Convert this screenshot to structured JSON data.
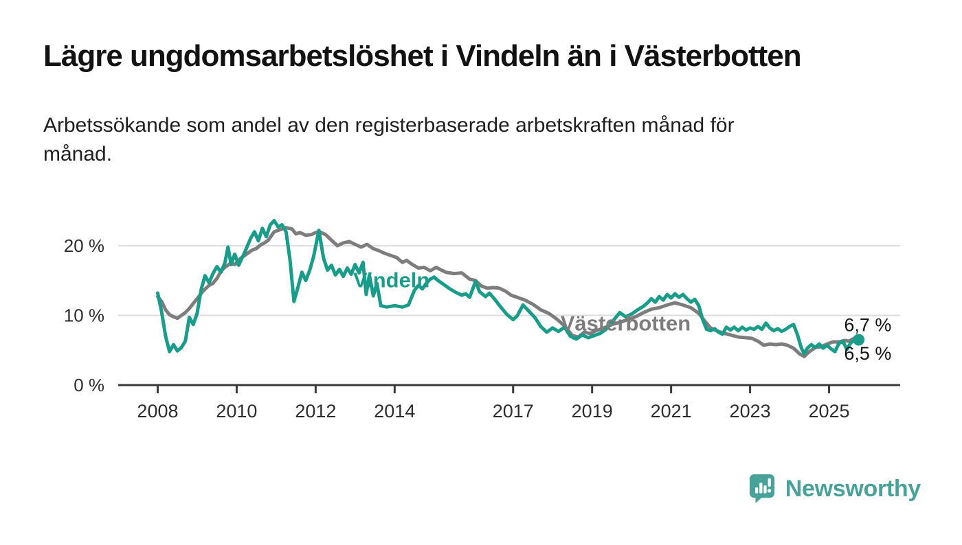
{
  "header": {
    "title": "Lägre ungdomsarbetslöshet i Vindeln än i Västerbotten",
    "subtitle": "Arbetssökande som andel av den registerbaserade arbetskraften månad för månad."
  },
  "footer": {
    "brand": "Newsworthy",
    "brand_color": "#48a29a",
    "logo_icon": "newsworthy-pin-barchart-icon"
  },
  "colors": {
    "background": "#ffffff",
    "grid": "#dcdcdc",
    "axis": "#3a3a3a",
    "tick_text": "#2d2d2d",
    "end_label_text": "#141414"
  },
  "chart_data": {
    "type": "line",
    "title": "Lägre ungdomsarbetslöshet i Vindeln än i Västerbotten",
    "subtitle": "Arbetssökande som andel av den registerbaserade arbetskraften månad för månad.",
    "unit": "%",
    "grid": "horizontal",
    "legend_position": "inline-labels",
    "x_axis": {
      "domain": [
        2007.0,
        2026.8
      ],
      "ticks": [
        2008,
        2010,
        2012,
        2014,
        2017,
        2019,
        2021,
        2023,
        2025
      ]
    },
    "y_axis": {
      "domain": [
        0,
        29.85
      ],
      "ticks": [
        {
          "value": 0,
          "label": "0 %"
        },
        {
          "value": 10,
          "label": "10 %"
        },
        {
          "value": 20,
          "label": "20 %"
        }
      ]
    },
    "series": [
      {
        "name": "Västerbotten",
        "color": "#7d7d7d",
        "end_dot": false,
        "end_label": "6,7 %",
        "end_label_pos": {
          "year": 2025.38,
          "value": 8.6
        },
        "inline_label_pos": {
          "year": 2018.2,
          "value": 8.9
        },
        "points": [
          [
            2008.0,
            12.7
          ],
          [
            2008.1,
            12.0
          ],
          [
            2008.2,
            10.8
          ],
          [
            2008.3,
            10.1
          ],
          [
            2008.4,
            9.8
          ],
          [
            2008.5,
            9.6
          ],
          [
            2008.6,
            10.0
          ],
          [
            2008.7,
            10.4
          ],
          [
            2008.8,
            11.0
          ],
          [
            2008.9,
            11.7
          ],
          [
            2009.0,
            12.4
          ],
          [
            2009.15,
            13.5
          ],
          [
            2009.3,
            14.3
          ],
          [
            2009.4,
            14.6
          ],
          [
            2009.5,
            15.3
          ],
          [
            2009.6,
            16.3
          ],
          [
            2009.7,
            16.9
          ],
          [
            2009.85,
            17.5
          ],
          [
            2009.95,
            17.3
          ],
          [
            2010.1,
            18.2
          ],
          [
            2010.25,
            18.8
          ],
          [
            2010.4,
            19.4
          ],
          [
            2010.5,
            19.6
          ],
          [
            2010.6,
            20.1
          ],
          [
            2010.7,
            20.4
          ],
          [
            2010.8,
            20.8
          ],
          [
            2010.95,
            22.0
          ],
          [
            2011.1,
            22.3
          ],
          [
            2011.25,
            22.6
          ],
          [
            2011.4,
            22.4
          ],
          [
            2011.5,
            21.7
          ],
          [
            2011.6,
            21.9
          ],
          [
            2011.75,
            21.5
          ],
          [
            2011.9,
            21.6
          ],
          [
            2012.0,
            21.9
          ],
          [
            2012.1,
            22.0
          ],
          [
            2012.25,
            21.6
          ],
          [
            2012.4,
            20.8
          ],
          [
            2012.55,
            20.0
          ],
          [
            2012.7,
            20.4
          ],
          [
            2012.85,
            20.6
          ],
          [
            2013.0,
            20.2
          ],
          [
            2013.15,
            19.8
          ],
          [
            2013.3,
            20.2
          ],
          [
            2013.45,
            19.6
          ],
          [
            2013.6,
            19.3
          ],
          [
            2013.75,
            18.9
          ],
          [
            2013.9,
            18.6
          ],
          [
            2014.05,
            18.3
          ],
          [
            2014.2,
            17.6
          ],
          [
            2014.3,
            17.9
          ],
          [
            2014.45,
            17.3
          ],
          [
            2014.6,
            16.8
          ],
          [
            2014.75,
            16.9
          ],
          [
            2014.9,
            16.4
          ],
          [
            2015.05,
            16.9
          ],
          [
            2015.15,
            16.6
          ],
          [
            2015.3,
            16.2
          ],
          [
            2015.5,
            16.0
          ],
          [
            2015.7,
            16.1
          ],
          [
            2015.9,
            15.2
          ],
          [
            2016.05,
            15.0
          ],
          [
            2016.2,
            14.2
          ],
          [
            2016.35,
            13.9
          ],
          [
            2016.5,
            14.0
          ],
          [
            2016.65,
            13.9
          ],
          [
            2016.8,
            13.5
          ],
          [
            2016.95,
            12.9
          ],
          [
            2017.1,
            12.6
          ],
          [
            2017.3,
            12.2
          ],
          [
            2017.5,
            11.6
          ],
          [
            2017.7,
            10.8
          ],
          [
            2017.9,
            10.3
          ],
          [
            2018.1,
            9.5
          ],
          [
            2018.3,
            8.5
          ],
          [
            2018.5,
            7.1
          ],
          [
            2018.65,
            6.9
          ],
          [
            2018.8,
            7.6
          ],
          [
            2018.95,
            7.4
          ],
          [
            2019.1,
            7.8
          ],
          [
            2019.3,
            8.2
          ],
          [
            2019.5,
            8.7
          ],
          [
            2019.7,
            9.0
          ],
          [
            2019.9,
            9.4
          ],
          [
            2020.1,
            9.8
          ],
          [
            2020.3,
            10.4
          ],
          [
            2020.5,
            10.9
          ],
          [
            2020.7,
            11.1
          ],
          [
            2020.9,
            11.5
          ],
          [
            2021.1,
            11.8
          ],
          [
            2021.3,
            11.5
          ],
          [
            2021.5,
            11.1
          ],
          [
            2021.7,
            10.3
          ],
          [
            2021.85,
            9.2
          ],
          [
            2022.0,
            8.2
          ],
          [
            2022.15,
            7.8
          ],
          [
            2022.3,
            7.5
          ],
          [
            2022.5,
            7.2
          ],
          [
            2022.7,
            6.9
          ],
          [
            2022.9,
            6.8
          ],
          [
            2023.05,
            6.7
          ],
          [
            2023.2,
            6.3
          ],
          [
            2023.35,
            5.7
          ],
          [
            2023.5,
            5.9
          ],
          [
            2023.65,
            5.8
          ],
          [
            2023.8,
            5.9
          ],
          [
            2023.95,
            5.7
          ],
          [
            2024.1,
            5.3
          ],
          [
            2024.25,
            4.5
          ],
          [
            2024.37,
            4.1
          ],
          [
            2024.5,
            4.8
          ],
          [
            2024.65,
            5.4
          ],
          [
            2024.8,
            5.5
          ],
          [
            2024.95,
            5.9
          ],
          [
            2025.1,
            6.2
          ],
          [
            2025.25,
            6.2
          ],
          [
            2025.4,
            6.4
          ],
          [
            2025.5,
            6.3
          ],
          [
            2025.6,
            6.6
          ],
          [
            2025.7,
            6.9
          ],
          [
            2025.75,
            6.7
          ]
        ]
      },
      {
        "name": "Vindeln",
        "color": "#1a9c8a",
        "end_dot": true,
        "end_label": "6,5 %",
        "end_label_pos": {
          "year": 2025.38,
          "value": 4.55
        },
        "inline_label_pos": {
          "year": 2012.95,
          "value": 15.1
        },
        "points": [
          [
            2008.0,
            13.2
          ],
          [
            2008.1,
            10.5
          ],
          [
            2008.2,
            7.0
          ],
          [
            2008.3,
            4.8
          ],
          [
            2008.4,
            5.8
          ],
          [
            2008.5,
            4.9
          ],
          [
            2008.6,
            5.4
          ],
          [
            2008.7,
            6.3
          ],
          [
            2008.8,
            9.7
          ],
          [
            2008.9,
            8.7
          ],
          [
            2009.0,
            10.3
          ],
          [
            2009.1,
            13.7
          ],
          [
            2009.2,
            15.7
          ],
          [
            2009.3,
            14.7
          ],
          [
            2009.4,
            16.0
          ],
          [
            2009.5,
            17.0
          ],
          [
            2009.6,
            16.2
          ],
          [
            2009.7,
            17.5
          ],
          [
            2009.78,
            19.8
          ],
          [
            2009.86,
            17.3
          ],
          [
            2009.95,
            18.8
          ],
          [
            2010.05,
            17.2
          ],
          [
            2010.2,
            19.0
          ],
          [
            2010.35,
            21.0
          ],
          [
            2010.45,
            22.0
          ],
          [
            2010.55,
            20.7
          ],
          [
            2010.65,
            22.5
          ],
          [
            2010.75,
            21.3
          ],
          [
            2010.85,
            23.0
          ],
          [
            2010.95,
            23.6
          ],
          [
            2011.05,
            22.7
          ],
          [
            2011.15,
            23.0
          ],
          [
            2011.25,
            22.0
          ],
          [
            2011.35,
            18.0
          ],
          [
            2011.45,
            12.0
          ],
          [
            2011.55,
            14.0
          ],
          [
            2011.65,
            16.2
          ],
          [
            2011.75,
            15.0
          ],
          [
            2011.85,
            16.5
          ],
          [
            2011.95,
            18.5
          ],
          [
            2012.08,
            22.2
          ],
          [
            2012.2,
            18.2
          ],
          [
            2012.3,
            16.5
          ],
          [
            2012.4,
            17.2
          ],
          [
            2012.5,
            15.8
          ],
          [
            2012.6,
            16.6
          ],
          [
            2012.7,
            15.6
          ],
          [
            2012.8,
            16.8
          ],
          [
            2012.9,
            15.9
          ],
          [
            2013.0,
            17.3
          ],
          [
            2013.1,
            16.1
          ],
          [
            2013.2,
            17.6
          ],
          [
            2013.28,
            13.0
          ],
          [
            2013.36,
            15.8
          ],
          [
            2013.46,
            12.8
          ],
          [
            2013.55,
            14.6
          ],
          [
            2013.65,
            11.4
          ],
          [
            2013.8,
            11.2
          ],
          [
            2014.0,
            11.4
          ],
          [
            2014.2,
            11.2
          ],
          [
            2014.35,
            11.5
          ],
          [
            2014.5,
            13.6
          ],
          [
            2014.6,
            14.3
          ],
          [
            2014.7,
            13.8
          ],
          [
            2014.8,
            14.6
          ],
          [
            2014.9,
            15.2
          ],
          [
            2015.0,
            15.5
          ],
          [
            2015.1,
            15.0
          ],
          [
            2015.25,
            14.4
          ],
          [
            2015.4,
            13.8
          ],
          [
            2015.55,
            13.3
          ],
          [
            2015.7,
            12.9
          ],
          [
            2015.8,
            13.1
          ],
          [
            2015.9,
            12.6
          ],
          [
            2016.05,
            14.9
          ],
          [
            2016.15,
            13.4
          ],
          [
            2016.3,
            12.7
          ],
          [
            2016.4,
            13.2
          ],
          [
            2016.55,
            12.2
          ],
          [
            2016.7,
            11.1
          ],
          [
            2016.85,
            10.1
          ],
          [
            2017.0,
            9.4
          ],
          [
            2017.1,
            9.9
          ],
          [
            2017.25,
            11.5
          ],
          [
            2017.4,
            10.6
          ],
          [
            2017.55,
            9.7
          ],
          [
            2017.7,
            8.4
          ],
          [
            2017.85,
            7.6
          ],
          [
            2018.0,
            8.2
          ],
          [
            2018.15,
            7.7
          ],
          [
            2018.3,
            8.3
          ],
          [
            2018.45,
            7.0
          ],
          [
            2018.6,
            6.6
          ],
          [
            2018.75,
            7.2
          ],
          [
            2018.9,
            6.8
          ],
          [
            2019.05,
            7.1
          ],
          [
            2019.2,
            7.4
          ],
          [
            2019.35,
            8.0
          ],
          [
            2019.5,
            9.0
          ],
          [
            2019.7,
            10.4
          ],
          [
            2019.85,
            9.8
          ],
          [
            2020.0,
            10.2
          ],
          [
            2020.15,
            10.8
          ],
          [
            2020.3,
            11.3
          ],
          [
            2020.42,
            11.9
          ],
          [
            2020.5,
            12.4
          ],
          [
            2020.6,
            11.9
          ],
          [
            2020.7,
            12.7
          ],
          [
            2020.8,
            12.2
          ],
          [
            2020.9,
            13.0
          ],
          [
            2021.0,
            12.5
          ],
          [
            2021.1,
            13.1
          ],
          [
            2021.2,
            12.6
          ],
          [
            2021.3,
            13.0
          ],
          [
            2021.4,
            12.4
          ],
          [
            2021.5,
            11.9
          ],
          [
            2021.6,
            12.3
          ],
          [
            2021.7,
            11.4
          ],
          [
            2021.8,
            9.4
          ],
          [
            2021.9,
            8.0
          ],
          [
            2022.0,
            7.8
          ],
          [
            2022.1,
            8.1
          ],
          [
            2022.2,
            7.6
          ],
          [
            2022.3,
            7.3
          ],
          [
            2022.4,
            8.3
          ],
          [
            2022.5,
            7.9
          ],
          [
            2022.6,
            8.3
          ],
          [
            2022.7,
            7.8
          ],
          [
            2022.8,
            8.3
          ],
          [
            2022.9,
            7.9
          ],
          [
            2023.0,
            8.2
          ],
          [
            2023.1,
            8.0
          ],
          [
            2023.2,
            8.4
          ],
          [
            2023.3,
            8.0
          ],
          [
            2023.4,
            8.9
          ],
          [
            2023.5,
            8.2
          ],
          [
            2023.6,
            7.8
          ],
          [
            2023.7,
            8.1
          ],
          [
            2023.8,
            7.7
          ],
          [
            2023.9,
            8.0
          ],
          [
            2024.0,
            8.4
          ],
          [
            2024.1,
            8.7
          ],
          [
            2024.2,
            7.2
          ],
          [
            2024.3,
            5.3
          ],
          [
            2024.37,
            4.5
          ],
          [
            2024.45,
            5.3
          ],
          [
            2024.55,
            5.8
          ],
          [
            2024.65,
            5.4
          ],
          [
            2024.75,
            5.9
          ],
          [
            2024.85,
            5.3
          ],
          [
            2024.95,
            5.7
          ],
          [
            2025.05,
            5.2
          ],
          [
            2025.15,
            4.8
          ],
          [
            2025.25,
            6.0
          ],
          [
            2025.35,
            6.3
          ],
          [
            2025.45,
            5.1
          ],
          [
            2025.55,
            6.1
          ],
          [
            2025.65,
            6.4
          ],
          [
            2025.75,
            6.5
          ]
        ]
      }
    ]
  }
}
